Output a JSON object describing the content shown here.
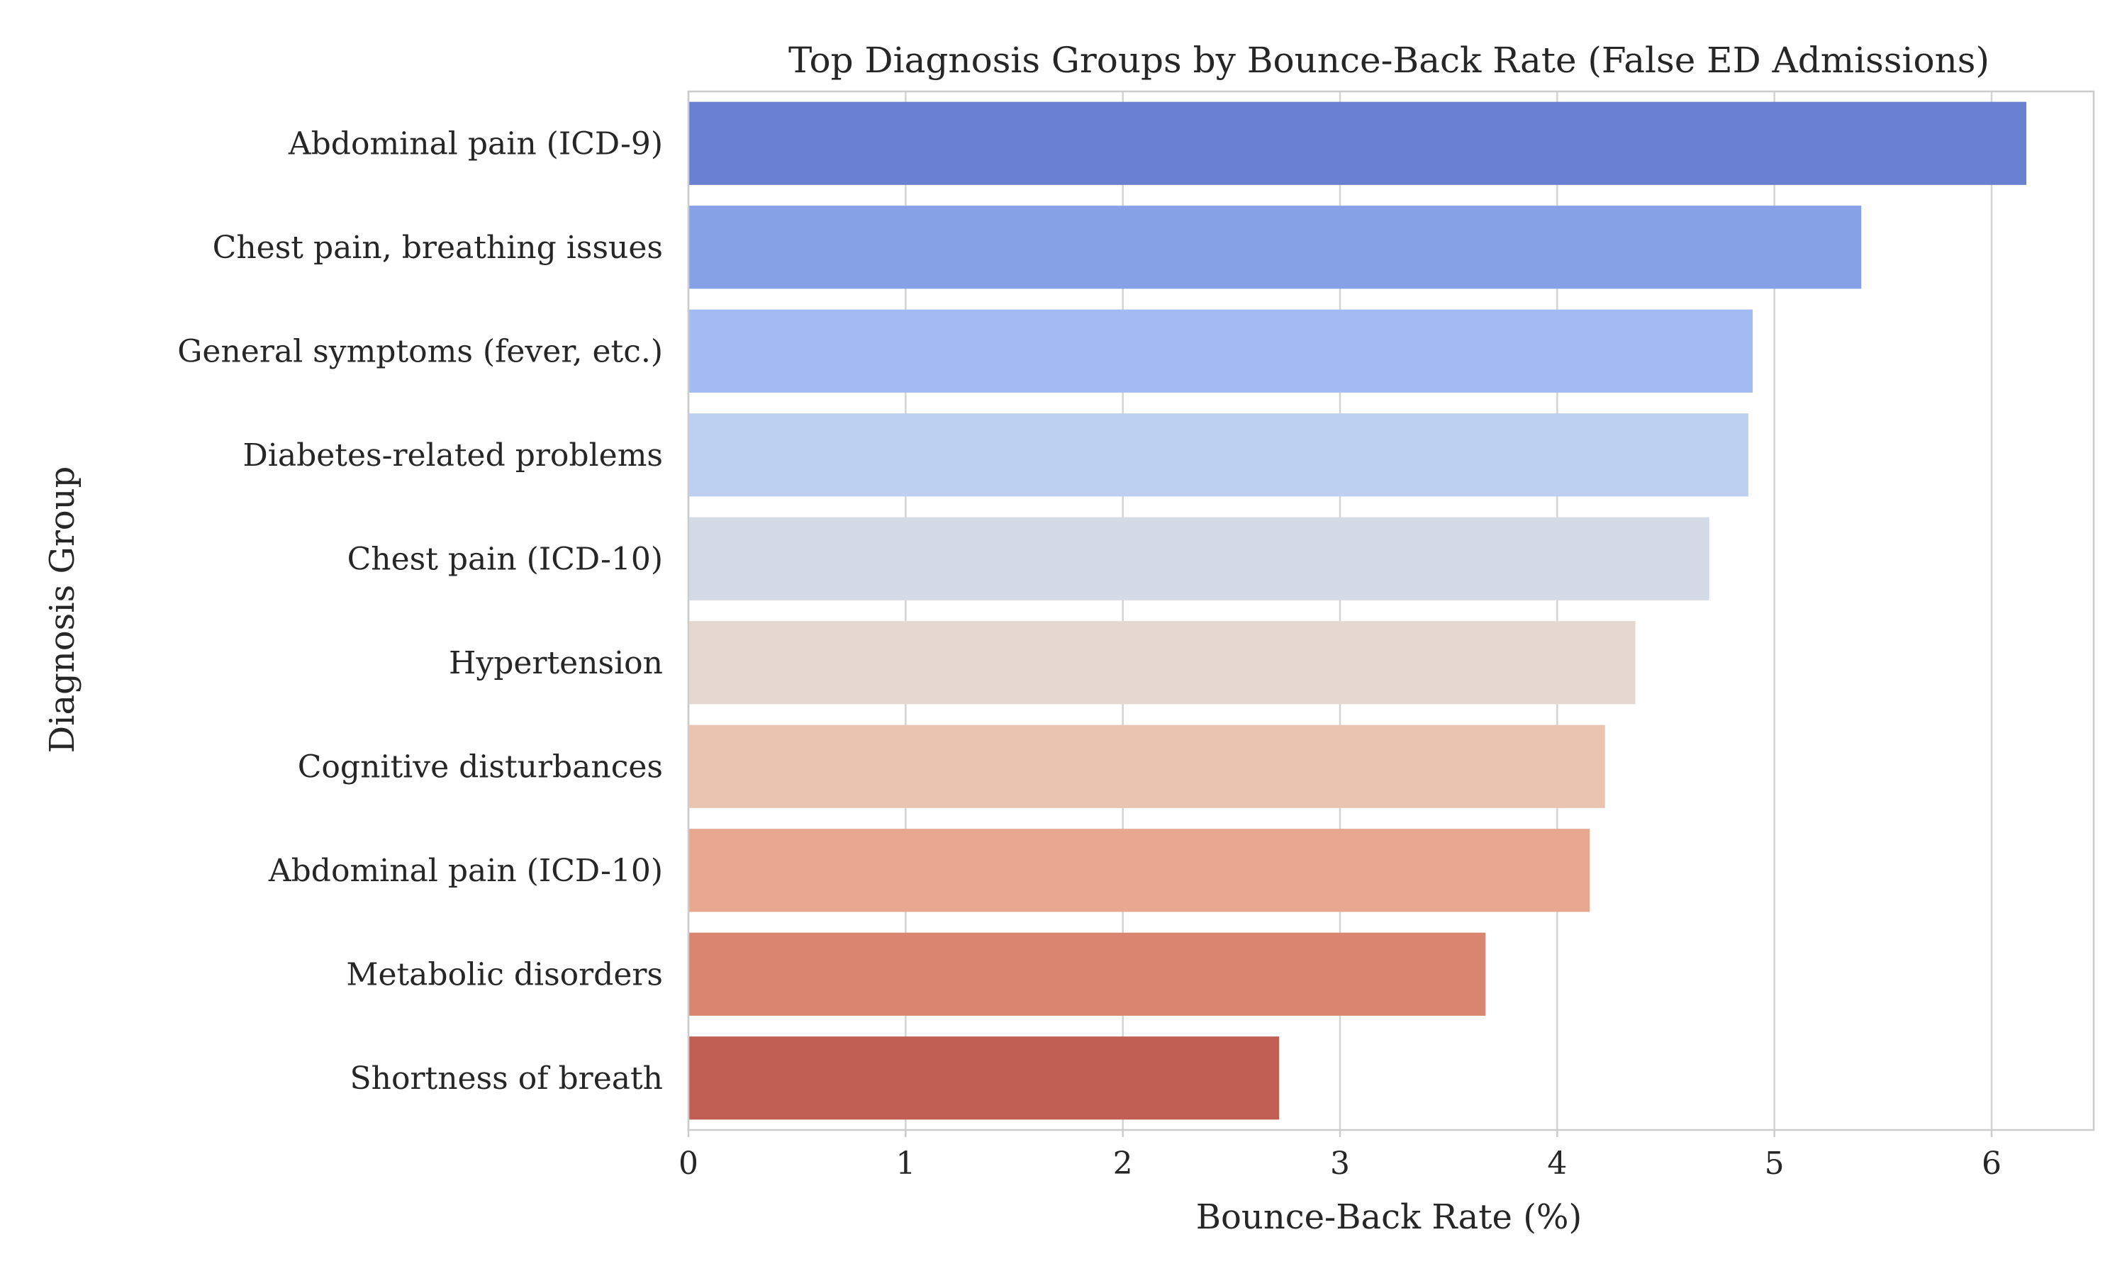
{
  "chart_data": {
    "type": "bar",
    "orientation": "horizontal",
    "title": "Top Diagnosis Groups by Bounce-Back Rate (False ED Admissions)",
    "xlabel": "Bounce-Back Rate (%)",
    "ylabel": "Diagnosis Group",
    "xlim": [
      0,
      6.47
    ],
    "xticks": [
      "0",
      "1",
      "2",
      "3",
      "4",
      "5",
      "6"
    ],
    "grid": true,
    "categories": [
      "Abdominal pain (ICD-9)",
      "Chest pain, breathing issues",
      "General symptoms (fever, etc.)",
      "Diabetes-related problems",
      "Chest pain (ICD-10)",
      "Hypertension",
      "Cognitive disturbances",
      "Abdominal pain (ICD-10)",
      "Metabolic disorders",
      "Shortness of breath"
    ],
    "values": [
      6.16,
      5.4,
      4.9,
      4.88,
      4.7,
      4.36,
      4.22,
      4.15,
      3.67,
      2.72
    ],
    "colors": [
      "#6a80d3",
      "#86a1e5",
      "#a2bcf3",
      "#bdd0f1",
      "#d5dbe6",
      "#e5d8d0",
      "#ebc4b1",
      "#e8a88f",
      "#d98670",
      "#c15e53"
    ]
  }
}
